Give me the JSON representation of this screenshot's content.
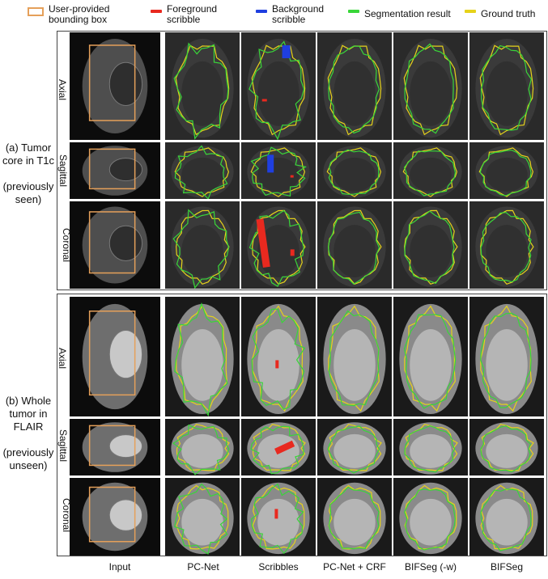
{
  "legend": {
    "bbox": "User-provided\nbounding box",
    "fg": "Foreground\nscribble",
    "bg": "Background\nscribble",
    "seg": "Segmentation result",
    "gt": "Ground truth"
  },
  "colors": {
    "bbox": "#e5a05a",
    "fg": "#e8291f",
    "bg": "#1f3fe0",
    "seg": "#39d639",
    "gt": "#e6d21a"
  },
  "groups": [
    {
      "label": "(a) Tumor\ncore in T1c\n\n(previously\nseen)",
      "views": [
        "Axial",
        "Sagittal",
        "Coronal"
      ]
    },
    {
      "label": "(b) Whole\ntumor in\nFLAIR\n\n(previously\nunseen)",
      "views": [
        "Axial",
        "Sagittal",
        "Coronal"
      ]
    }
  ],
  "columns": [
    "Input",
    "PC-Net",
    "Scribbles",
    "PC-Net + CRF",
    "BIFSeg (-w)",
    "BIFSeg"
  ]
}
